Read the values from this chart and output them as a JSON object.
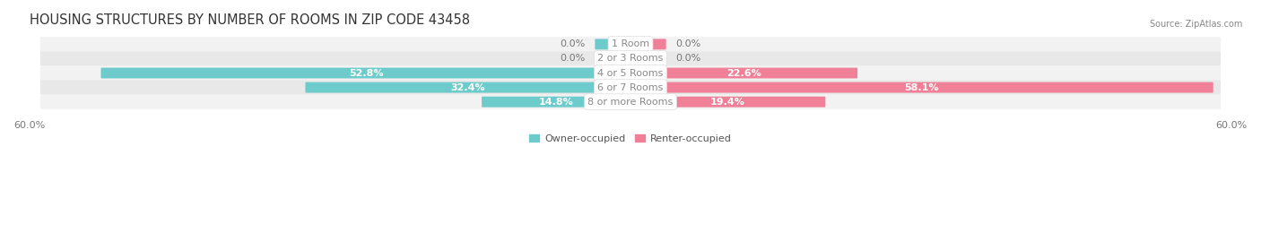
{
  "title": "HOUSING STRUCTURES BY NUMBER OF ROOMS IN ZIP CODE 43458",
  "source": "Source: ZipAtlas.com",
  "categories": [
    "1 Room",
    "2 or 3 Rooms",
    "4 or 5 Rooms",
    "6 or 7 Rooms",
    "8 or more Rooms"
  ],
  "owner_values": [
    0.0,
    0.0,
    52.8,
    32.4,
    14.8
  ],
  "renter_values": [
    0.0,
    0.0,
    22.6,
    58.1,
    19.4
  ],
  "owner_color": "#6dcbcb",
  "renter_color": "#f08098",
  "row_bg_light": "#f2f2f2",
  "row_bg_dark": "#e8e8e8",
  "axis_max": 60.0,
  "min_bar_visual": 3.5,
  "label_color_white": "#ffffff",
  "label_color_dark": "#777777",
  "center_label_color": "#888888",
  "legend_owner": "Owner-occupied",
  "legend_renter": "Renter-occupied",
  "title_fontsize": 10.5,
  "label_fontsize": 8,
  "category_fontsize": 8,
  "axis_label_fontsize": 8
}
